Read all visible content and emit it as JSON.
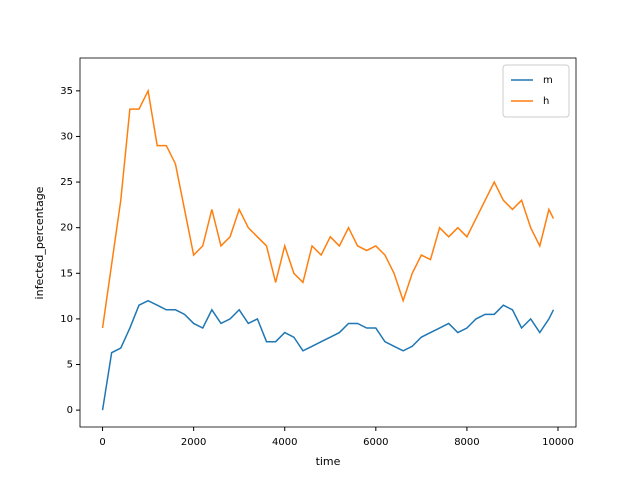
{
  "chart_data": {
    "type": "line",
    "x_label": "time",
    "y_label": "infected_percentage",
    "x": [
      0,
      200,
      400,
      600,
      800,
      1000,
      1200,
      1400,
      1600,
      1800,
      2000,
      2200,
      2400,
      2600,
      2800,
      3000,
      3200,
      3400,
      3600,
      3800,
      4000,
      4200,
      4400,
      4600,
      4800,
      5000,
      5200,
      5400,
      5600,
      5800,
      6000,
      6200,
      6400,
      6600,
      6800,
      7000,
      7200,
      7400,
      7600,
      7800,
      8000,
      8200,
      8400,
      8600,
      8800,
      9000,
      9200,
      9400,
      9600,
      9800,
      9900
    ],
    "series": [
      {
        "name": "m",
        "color": "#1f77b4",
        "values": [
          0,
          6.3,
          6.8,
          9,
          11.5,
          12,
          11.5,
          11,
          11,
          10.5,
          9.5,
          9,
          11,
          9.5,
          10,
          11,
          9.5,
          10,
          7.5,
          7.5,
          8.5,
          8,
          6.5,
          7,
          7.5,
          8,
          8.5,
          9.5,
          9.5,
          9,
          9,
          7.5,
          7,
          6.5,
          7,
          8,
          8.5,
          9,
          9.5,
          8.5,
          9,
          10,
          10.5,
          10.5,
          11.5,
          11,
          9,
          10,
          8.5,
          10,
          11
        ]
      },
      {
        "name": "h",
        "color": "#ff7f0e",
        "values": [
          9,
          16,
          23,
          33,
          33,
          35,
          29,
          29,
          27,
          22,
          17,
          18,
          22,
          18,
          19,
          22,
          20,
          19,
          18,
          14,
          18,
          15,
          14,
          18,
          17,
          19,
          18,
          20,
          18,
          17.5,
          18,
          17,
          15,
          12,
          15,
          17,
          16.5,
          20,
          19,
          20,
          19,
          21,
          23,
          25,
          23,
          22,
          23,
          20,
          18,
          22,
          21
        ]
      }
    ],
    "xlim": [
      -495,
      10395
    ],
    "ylim": [
      -1.85,
      38.6
    ],
    "xticks": [
      0,
      2000,
      4000,
      6000,
      8000,
      10000
    ],
    "yticks": [
      0,
      5,
      10,
      15,
      20,
      25,
      30,
      35
    ],
    "legend": "upper-right"
  }
}
